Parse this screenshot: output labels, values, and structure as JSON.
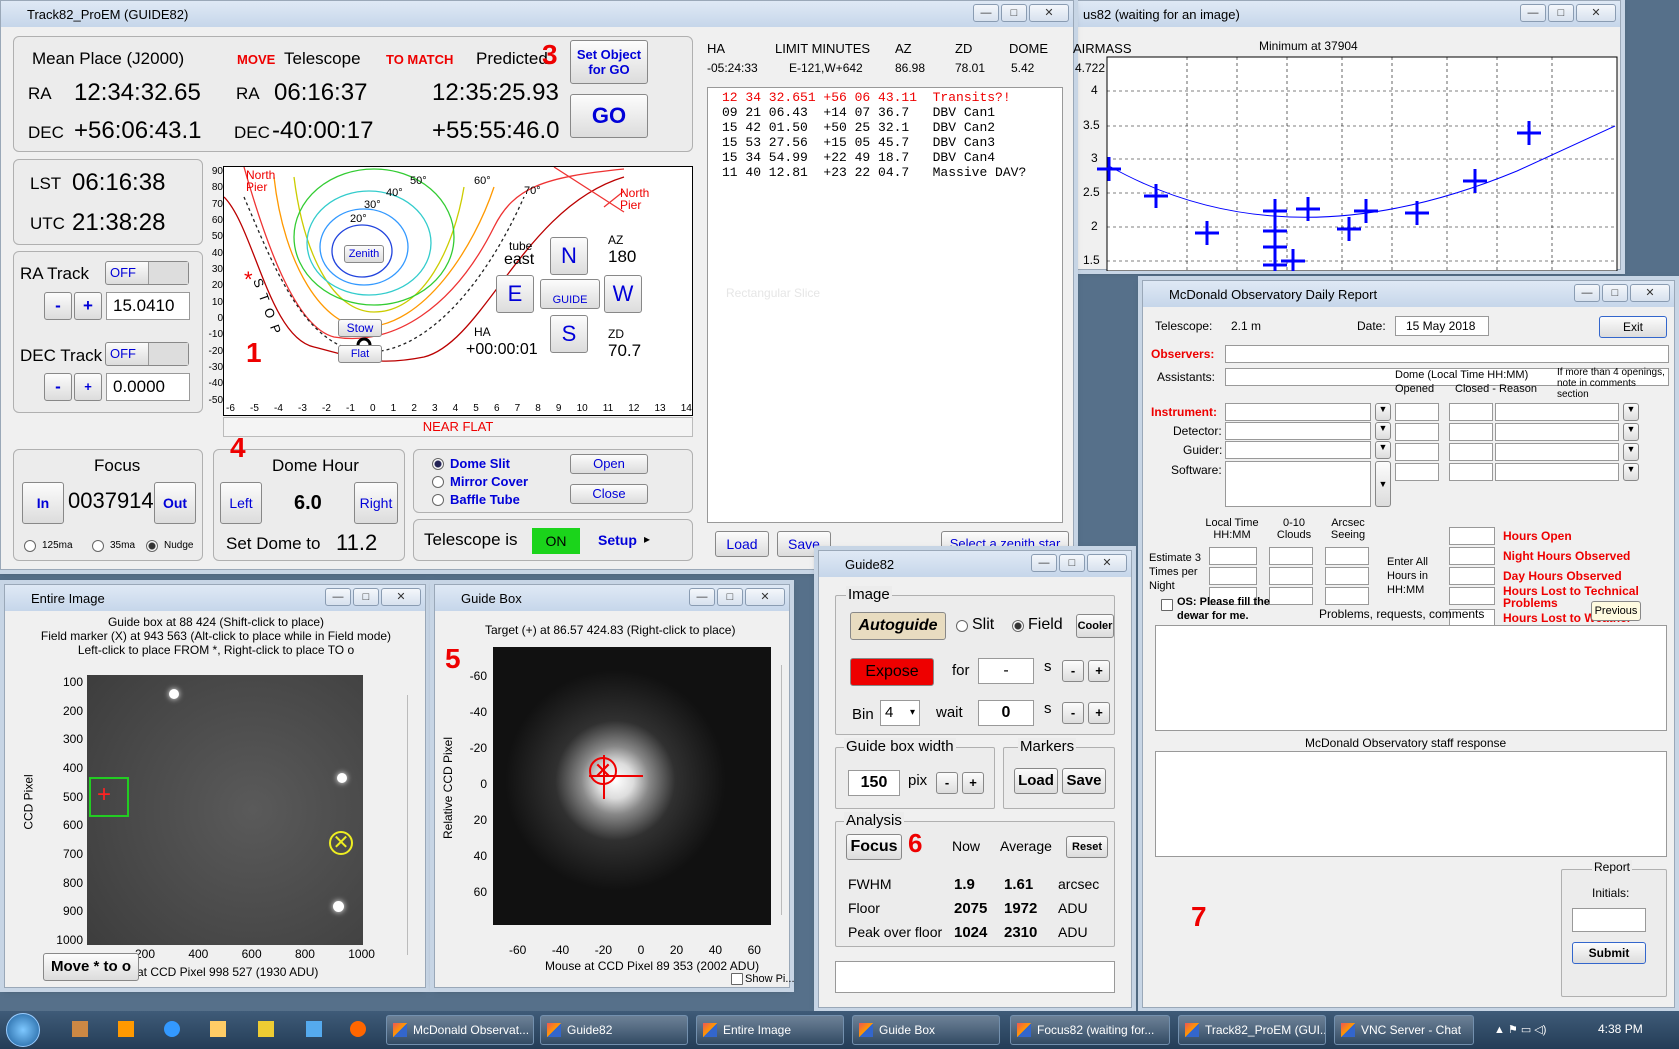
{
  "track": {
    "title": "Track82_ProEM (GUIDE82)",
    "mean_place": "Mean Place (J2000)",
    "move": "MOVE",
    "telescope": "Telescope",
    "to_match": "TO MATCH",
    "predicted": "Predicted",
    "num3": "3",
    "set_object": "Set Object for GO",
    "go": "GO",
    "ra_label": "RA",
    "dec_label": "DEC",
    "ra_mean": "12:34:32.65",
    "dec_mean": "+56:06:43.1",
    "ra_tel": "06:16:37",
    "dec_tel": "-40:00:17",
    "ra_pred": "12:35:25.93",
    "dec_pred": "+55:55:46.0",
    "lst_label": "LST",
    "lst": "06:16:38",
    "utc_label": "UTC",
    "utc": "21:38:28",
    "ra_track": "RA Track",
    "ra_off": "OFF",
    "ra_rate": "15.0410",
    "dec_track": "DEC Track",
    "dec_off": "OFF",
    "dec_rate": "0.0000",
    "minus": "-",
    "plus": "+",
    "focus": "Focus",
    "focus_in": "In",
    "focus_val": "0037914",
    "focus_out": "Out",
    "r125": "125ma",
    "r35": "35ma",
    "nudge": "Nudge",
    "dome_hour": "Dome Hour",
    "left": "Left",
    "dome_val": "6.0",
    "right": "Right",
    "set_dome": "Set Dome to",
    "set_dome_val": "11.2",
    "num4": "4",
    "dome_slit": "Dome Slit",
    "mirror_cover": "Mirror Cover",
    "baffle_tube": "Baffle Tube",
    "open": "Open",
    "close": "Close",
    "telescope_is": "Telescope is",
    "on": "ON",
    "setup": "Setup",
    "north_pier": "North Pier",
    "tube": "tube",
    "east": "east",
    "n": "N",
    "e": "E",
    "w": "W",
    "s": "S",
    "guide": "GUIDE",
    "az_label": "AZ",
    "az": "180",
    "zd_label": "ZD",
    "zd": "70.7",
    "ha_label": "HA",
    "ha": "+00:00:01",
    "zenith": "Zenith",
    "stow": "Stow",
    "flat": "Flat",
    "stop": "S T O P",
    "num1": "1",
    "near_flat": "NEAR FLAT",
    "contours": [
      "20°",
      "30°",
      "40°",
      "50°",
      "60°",
      "70°"
    ],
    "xticks": [
      "-6",
      "-5",
      "-4",
      "-3",
      "-2",
      "-1",
      "0",
      "1",
      "2",
      "3",
      "4",
      "5",
      "6",
      "7",
      "8",
      "9",
      "10",
      "11",
      "12",
      "13",
      "14"
    ],
    "yticks": [
      "90",
      "80",
      "70",
      "60",
      "50",
      "40",
      "30",
      "20",
      "10",
      "0",
      "-10",
      "-20",
      "-30",
      "-40",
      "-50"
    ],
    "hdr": {
      "ha": "HA",
      "limit": "LIMIT MINUTES",
      "az": "AZ",
      "zd": "ZD",
      "dome": "DOME",
      "airmass": "AIRMASS"
    },
    "vals": {
      "ha": "-05:24:33",
      "limit": "E-121,W+642",
      "az": "86.98",
      "zd": "78.01",
      "dome": "5.42",
      "airmass": "4.722"
    },
    "objects": [
      "12 34 32.651 +56 06 43.11  Transits?!",
      "09 21 06.43  +14 07 36.7   DBV Can1",
      "15 42 01.50  +50 25 32.1   DBV Can2",
      "15 53 27.56  +15 05 45.7   DBV Can3",
      "15 34 54.99  +22 49 18.7   DBV Can4",
      "11 40 12.81  +23 22 04.7   Massive DAV?"
    ],
    "num2": "2",
    "rect_ghost": "Rectangular Slice",
    "load": "Load",
    "save": "Save",
    "zenith_star": "Select a zenith star"
  },
  "focus82": {
    "title": "us82 (waiting for an image)",
    "plot_title": "Minimum at 37904",
    "yticks": [
      "4",
      "3.5",
      "3",
      "2.5",
      "2",
      "1.5"
    ]
  },
  "report": {
    "title": "McDonald Observatory Daily Report",
    "telescope_label": "Telescope:",
    "telescope": "2.1 m",
    "date_label": "Date:",
    "date": "15 May 2018",
    "exit": "Exit",
    "observers": "Observers:",
    "assistants": "Assistants:",
    "instrument": "Instrument:",
    "detector": "Detector:",
    "guider": "Guider:",
    "software": "Software:",
    "dome_hdr": "Dome (Local Time HH:MM)",
    "opened": "Opened",
    "closed": "Closed - Reason",
    "if_more": "If more than 4 openings, note in comments section",
    "local_time": "Local Time HH:MM",
    "clouds": "0-10 Clouds",
    "seeing": "Arcsec Seeing",
    "estimate": "Estimate 3 Times per Night",
    "enter_all": "Enter All Hours in HH:MM",
    "hours_open": "Hours Open",
    "night_hours": "Night Hours Observed",
    "day_hours": "Day Hours Observed",
    "lost_tech": "Hours Lost to Technical Problems",
    "lost_weather": "Hours Lost to Weather",
    "os_fill": "OS: Please fill the dewar for me.",
    "problems": "Problems, requests, comments",
    "previous": "Previous",
    "staff": "McDonald Observatory staff response",
    "report_lbl": "Report",
    "initials": "Initials:",
    "submit": "Submit",
    "num7": "7"
  },
  "entire": {
    "title": "Entire Image",
    "line1": "Guide box at 88  424 (Shift-click to place)",
    "line2": "Field marker (X) at 943  563 (Alt-click to place while in Field mode)",
    "line3": "Left-click to place FROM *, Right-click to place TO o",
    "ylabel": "CCD Pixel",
    "yticks": [
      "100",
      "200",
      "300",
      "400",
      "500",
      "600",
      "700",
      "800",
      "900",
      "1000"
    ],
    "xticks": [
      "200",
      "400",
      "600",
      "800",
      "1000"
    ],
    "move": "Move * to o",
    "mouse": "at CCD Pixel 998 527 (1930 ADU)"
  },
  "guidebox": {
    "title": "Guide Box",
    "target": "Target (+) at  86.57 424.83   (Right-click to place)",
    "ylabel": "Relative CCD Pixel",
    "yticks": [
      "-60",
      "-40",
      "-20",
      "0",
      "20",
      "40",
      "60"
    ],
    "xticks": [
      "-60",
      "-40",
      "-20",
      "0",
      "20",
      "40",
      "60"
    ],
    "mouse": "Mouse at CCD Pixel 89 353 (2002 ADU)",
    "show": "Show Pi...",
    "num5": "5"
  },
  "guide82": {
    "title": "Guide82",
    "image": "Image",
    "autoguide": "Autoguide",
    "slit": "Slit",
    "field": "Field",
    "cooler": "Cooler",
    "expose": "Expose",
    "for": "for",
    "for_val": "-",
    "s": "s",
    "bin": "Bin",
    "bin_val": "4",
    "wait": "wait",
    "wait_val": "0",
    "gbw": "Guide box width",
    "gbw_val": "150",
    "pix": "pix",
    "markers": "Markers",
    "load": "Load",
    "save": "Save",
    "analysis": "Analysis",
    "focus": "Focus",
    "now": "Now",
    "average": "Average",
    "reset": "Reset",
    "num6": "6",
    "rows": [
      {
        "k": "FWHM",
        "n": "1.9",
        "a": "1.61",
        "u": "arcsec"
      },
      {
        "k": "Floor",
        "n": "2075",
        "a": "1972",
        "u": "ADU"
      },
      {
        "k": "Peak over floor",
        "n": "1024",
        "a": "2310",
        "u": "ADU"
      }
    ]
  },
  "taskbar": {
    "items": [
      "McDonald Observat...",
      "Guide82",
      "Entire Image",
      "Guide Box",
      "Focus82 (waiting for...",
      "Track82_ProEM (GUI...",
      "VNC Server - Chat"
    ],
    "clock": "4:38 PM"
  }
}
